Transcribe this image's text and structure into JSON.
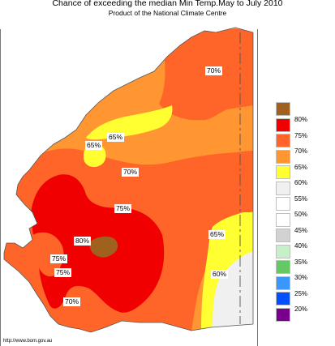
{
  "title": "Chance of exceeding the median Min Temp.May to July 2010",
  "subtitle": "Product of the National Climate Centre",
  "source": "http://www.bom.gov.au",
  "region": "Western Australia",
  "colors": {
    "sea": "#ffffff",
    "c80": "#a0601e",
    "c75": "#f00000",
    "c70": "#ff6428",
    "c65": "#ff9632",
    "c60": "#ffff32",
    "c55": "#f0f0f0",
    "border": "#555555"
  },
  "map_labels": [
    {
      "id": "l1",
      "text": "70%"
    },
    {
      "id": "l2",
      "text": "65%"
    },
    {
      "id": "l3",
      "text": "65%"
    },
    {
      "id": "l4",
      "text": "70%"
    },
    {
      "id": "l5",
      "text": "75%"
    },
    {
      "id": "l6",
      "text": "80%"
    },
    {
      "id": "l7",
      "text": "65%"
    },
    {
      "id": "l8",
      "text": "75%"
    },
    {
      "id": "l9",
      "text": "75%"
    },
    {
      "id": "l10",
      "text": "60%"
    },
    {
      "id": "l11",
      "text": "70%"
    }
  ],
  "legend": [
    {
      "label": "80%",
      "color": "#a0601e"
    },
    {
      "label": "75%",
      "color": "#f00000"
    },
    {
      "label": "70%",
      "color": "#ff6428"
    },
    {
      "label": "65%",
      "color": "#ff9632"
    },
    {
      "label": "60%",
      "color": "#ffff32"
    },
    {
      "label": "55%",
      "color": "#f0f0f0"
    },
    {
      "label": "50%",
      "color": "#ffffff"
    },
    {
      "label": "45%",
      "color": "#ffffff"
    },
    {
      "label": "40%",
      "color": "#d2d2d2"
    },
    {
      "label": "35%",
      "color": "#c8f0c8"
    },
    {
      "label": "30%",
      "color": "#64c864"
    },
    {
      "label": "25%",
      "color": "#3c96ff"
    },
    {
      "label": "20%",
      "color": "#0050ff"
    },
    {
      "label": "",
      "color": "#78008c"
    }
  ]
}
